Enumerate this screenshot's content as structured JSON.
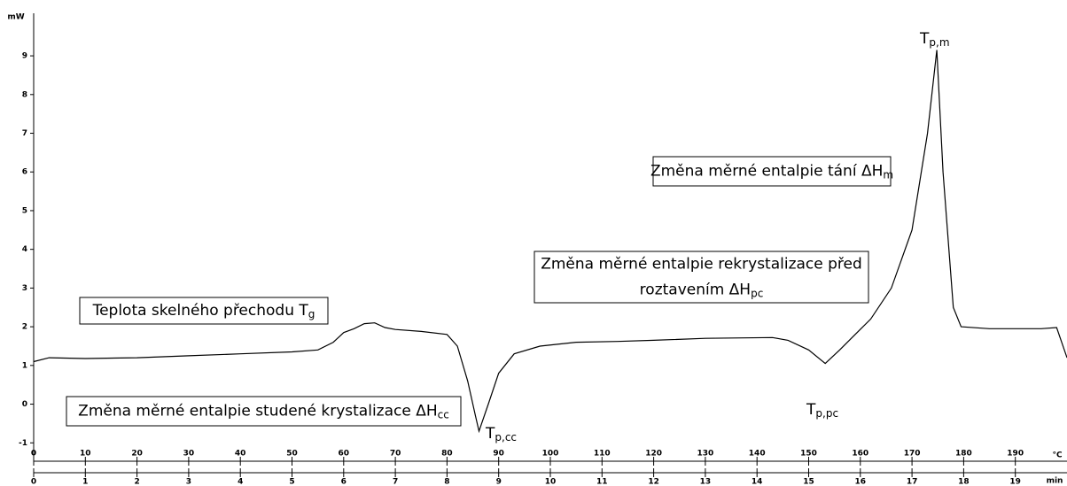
{
  "chart_data": {
    "type": "line",
    "ylabel": "mW",
    "xlabel": "min",
    "x2label": "°C",
    "color": "#000000",
    "x": [
      0,
      0.3,
      1,
      2,
      3,
      4,
      5,
      5.5,
      5.8,
      6,
      6.2,
      6.4,
      6.6,
      6.8,
      7,
      7.5,
      8,
      8.2,
      8.4,
      8.55,
      8.62,
      8.8,
      9,
      9.3,
      9.8,
      10.5,
      11.3,
      12,
      13,
      14.3,
      14.6,
      15,
      15.32,
      15.6,
      15.9,
      16.2,
      16.6,
      17,
      17.3,
      17.48,
      17.6,
      17.8,
      17.95,
      18.5,
      19.5,
      19.8,
      20
    ],
    "values": [
      1.1,
      1.2,
      1.18,
      1.2,
      1.25,
      1.3,
      1.35,
      1.4,
      1.6,
      1.85,
      1.95,
      2.08,
      2.1,
      1.98,
      1.93,
      1.88,
      1.8,
      1.5,
      0.6,
      -0.3,
      -0.7,
      0,
      0.8,
      1.3,
      1.5,
      1.6,
      1.62,
      1.65,
      1.7,
      1.72,
      1.65,
      1.4,
      1.05,
      1.4,
      1.8,
      2.2,
      3,
      4.5,
      7,
      9.15,
      6,
      2.5,
      2.0,
      1.95,
      1.95,
      1.98,
      1.2
    ],
    "xlim": [
      0,
      20
    ],
    "xticks": [
      0,
      1,
      2,
      3,
      4,
      5,
      6,
      7,
      8,
      9,
      10,
      11,
      12,
      13,
      14,
      15,
      16,
      17,
      18,
      19
    ],
    "x2lim": [
      0,
      200
    ],
    "x2ticks": [
      0,
      10,
      20,
      30,
      40,
      50,
      60,
      70,
      80,
      90,
      100,
      110,
      120,
      130,
      140,
      150,
      160,
      170,
      180,
      190
    ],
    "ylim": [
      -1.2,
      10.1
    ],
    "yticks": [
      -1,
      0,
      1,
      2,
      3,
      4,
      5,
      6,
      7,
      8,
      9
    ],
    "annotations": [
      {
        "lines": [
          "Teplota skelného přechodu T"
        ],
        "sub": "g"
      },
      {
        "lines": [
          "Změna měrné entalpie studené krystalizace ΔH"
        ],
        "sub": "cc"
      },
      {
        "lines": [
          "Změna měrné entalpie rekrystalizace před",
          "roztavením ΔH"
        ],
        "sub": "pc"
      },
      {
        "lines": [
          "Změna měrné entalpie tání ΔH"
        ],
        "sub": "m"
      }
    ],
    "peak_labels": [
      {
        "text": "T",
        "sub": "p,cc"
      },
      {
        "text": "T",
        "sub": "p,pc"
      },
      {
        "text": "T",
        "sub": "p,m"
      }
    ]
  }
}
